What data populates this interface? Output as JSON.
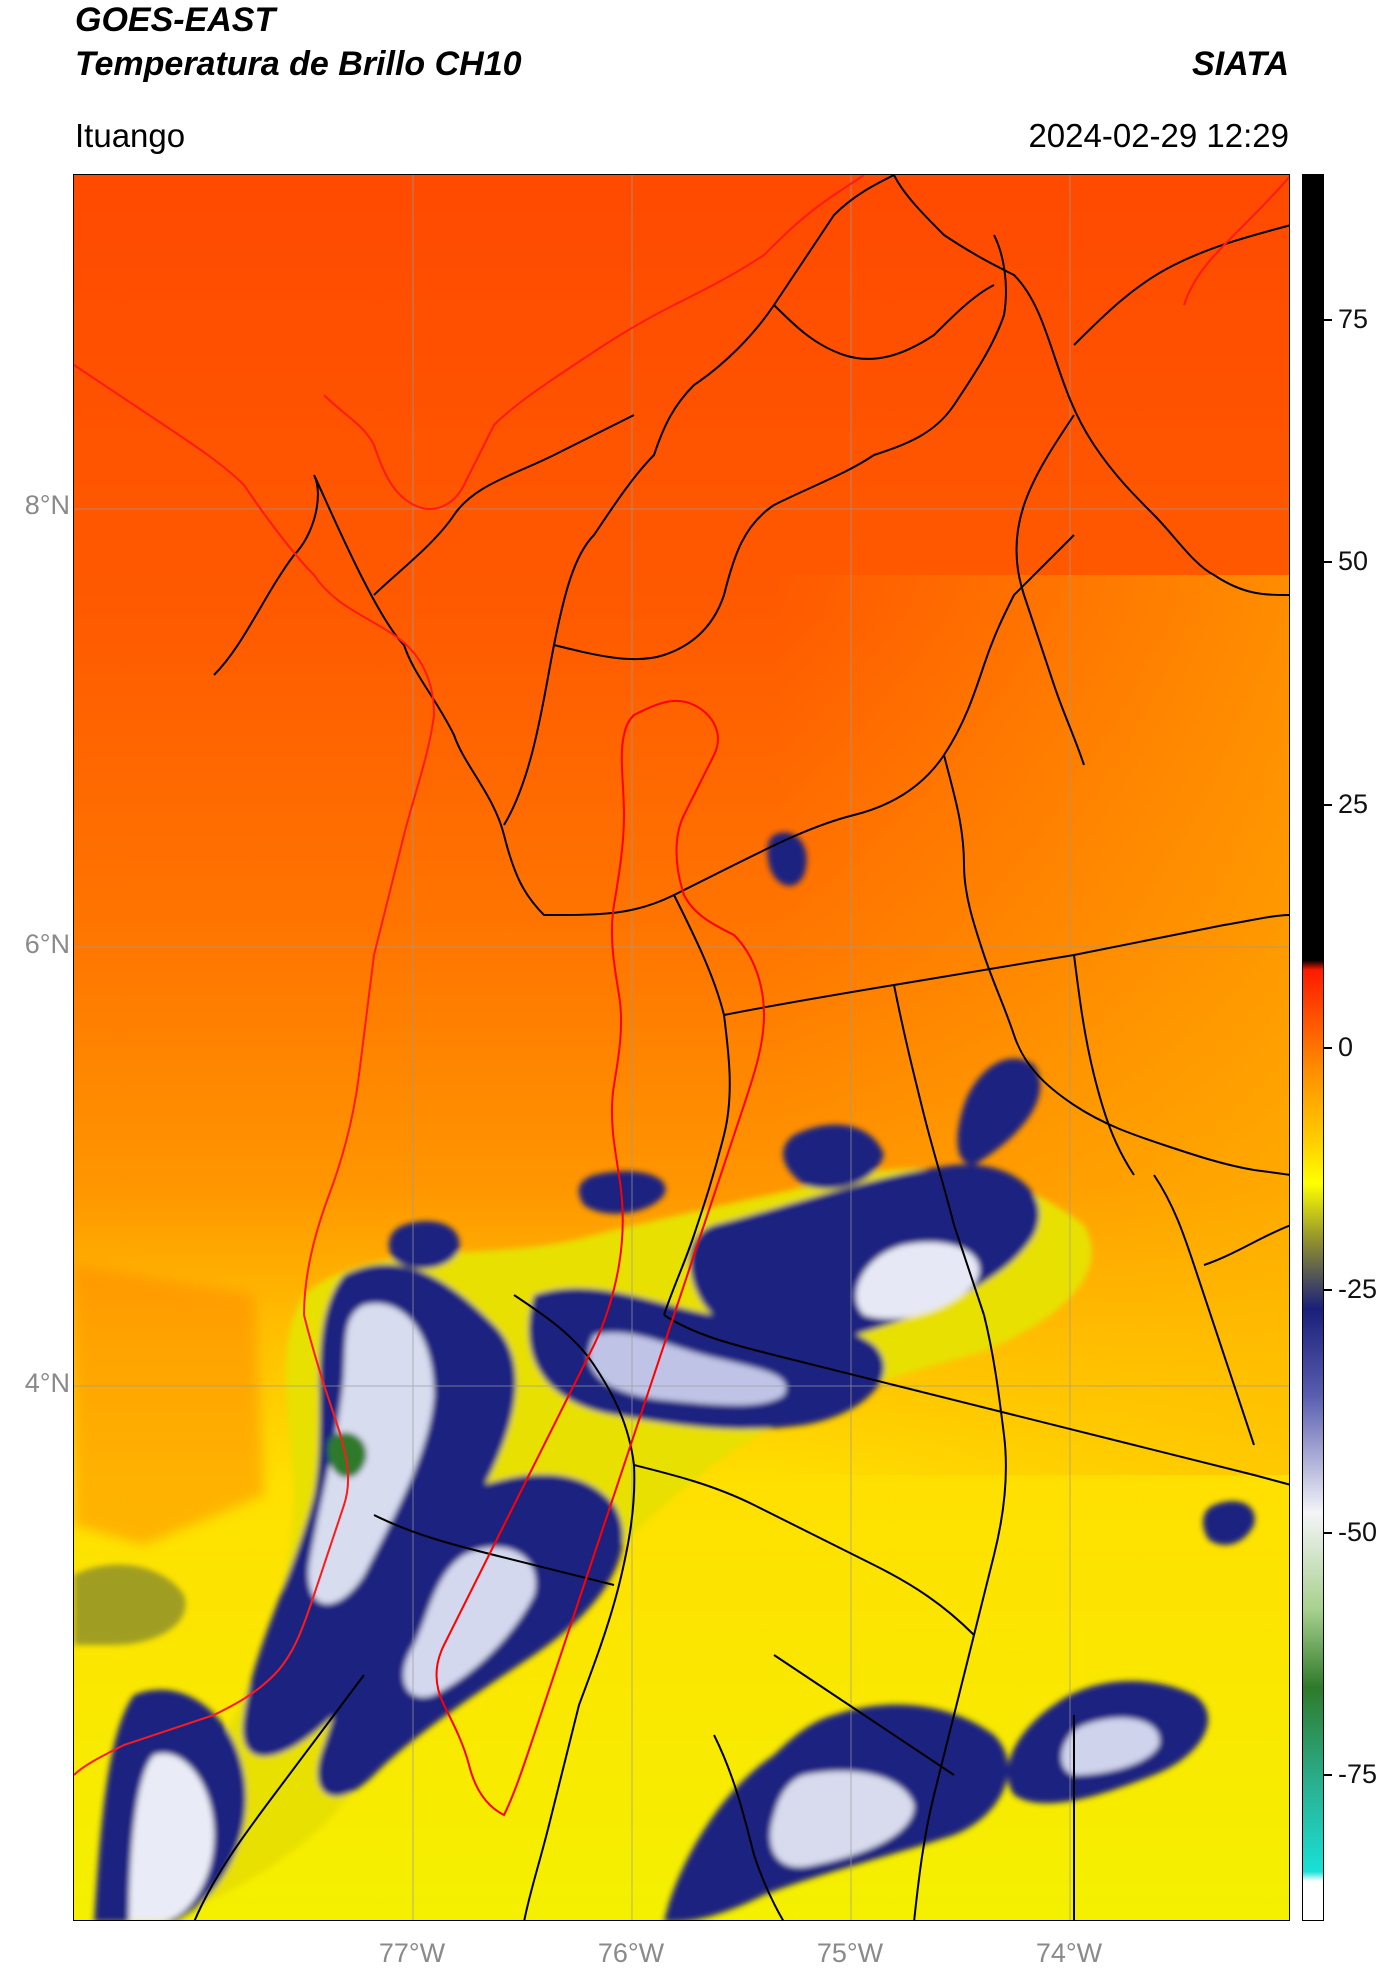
{
  "header": {
    "line1": "GOES-EAST",
    "line2": "Temperatura de Brillo CH10",
    "org": "SIATA",
    "region": "Ituango",
    "datetime": "2024-02-29 12:29"
  },
  "map": {
    "lat_labels": [
      "8°N",
      "6°N",
      "4°N"
    ],
    "lon_labels": [
      "77°W",
      "76°W",
      "75°W",
      "74°W"
    ],
    "basin_outline_color": "#ff0000",
    "border_color": "#000000",
    "gridline_color": "#9a9a9a"
  },
  "colorbar": {
    "labels": [
      "75",
      "50",
      "25",
      "0",
      "-25",
      "-50",
      "-75"
    ],
    "values": [
      75,
      50,
      25,
      0,
      -25,
      -50,
      -75
    ],
    "range": [
      -90,
      90
    ],
    "colors": {
      "warm_top": "#000000",
      "zero": "#ff8a00",
      "cold_blue": "#1a1f7a",
      "cold_white": "#f4f4f8",
      "green": "#2f7a2a",
      "cyan": "#19e0d8"
    }
  }
}
